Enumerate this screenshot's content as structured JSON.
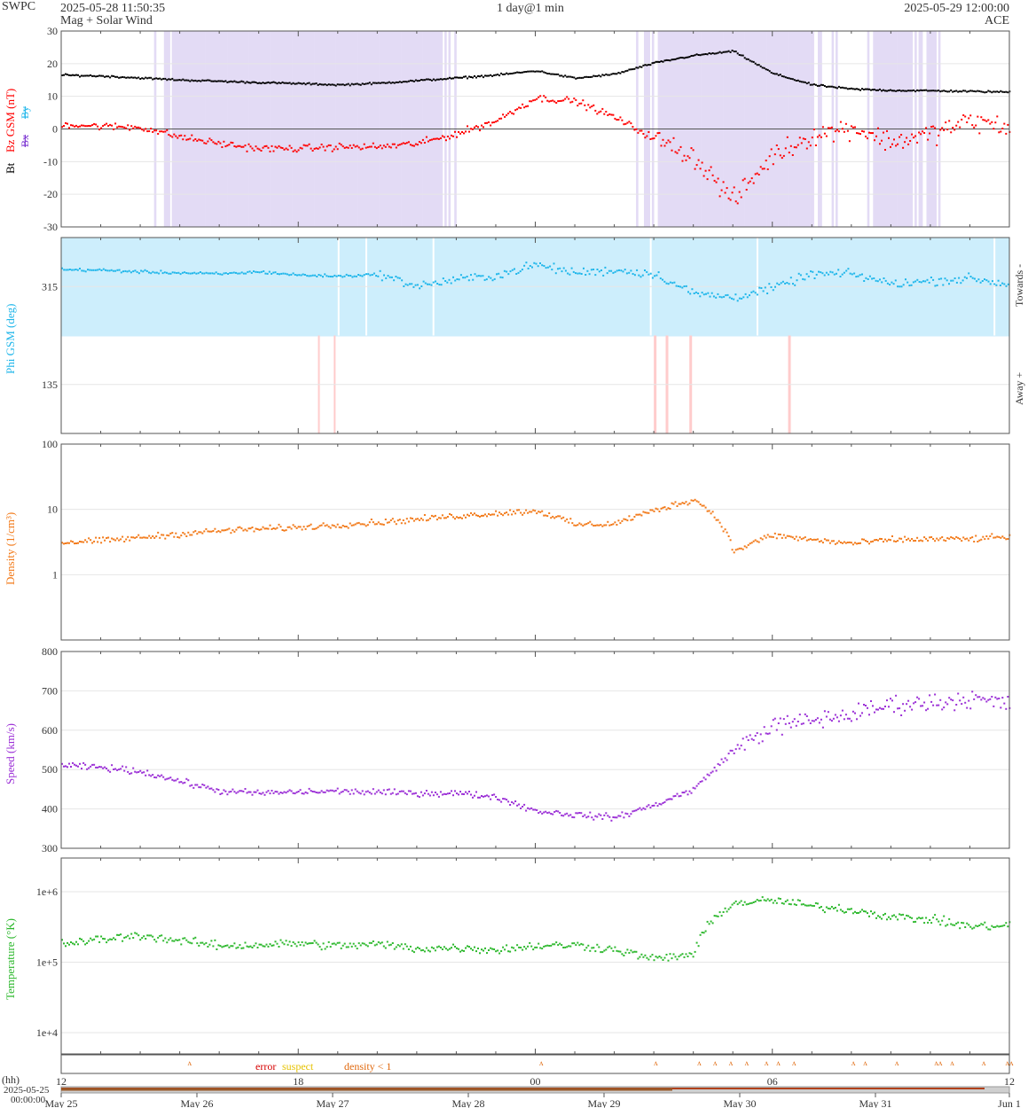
{
  "header": {
    "agency": "SWPC",
    "generated": "2025-05-28 11:50:35",
    "product": "Mag + Solar Wind",
    "span": "1 day@1 min",
    "end_time": "2025-05-29 12:00:00",
    "source": "ACE"
  },
  "legend": {
    "error": "error",
    "suspect": "suspect",
    "density_lt_1": "density < 1"
  },
  "colors": {
    "bt": "#000000",
    "bz": "#ff0000",
    "bz_neg_shade": "#e3dbf5",
    "phi": "#1fb6ea",
    "phi_toward_band": "#cdeefc",
    "phi_away_band": "#ffcccc",
    "density": "#f27a1a",
    "speed": "#9b2fd6",
    "temperature": "#2db82d",
    "error": "#d60000",
    "suspect": "#e6c200",
    "density_flag": "#e06a10",
    "grid": "#e6e6e6",
    "frame": "#555555"
  },
  "time_axis": {
    "hour_label": "(hh)",
    "hour_ticks": [
      "12",
      "18",
      "00",
      "06",
      "12"
    ],
    "start_date": "2025-05-25",
    "start_time": "00:00:00",
    "day_ticks": [
      "May 25",
      "May 26",
      "May 27",
      "May 28",
      "May 29",
      "May 30",
      "May 31",
      "Jun 1"
    ]
  },
  "chart_data": [
    {
      "type": "scatter",
      "panel": "mag",
      "ylabel_bt": "Bt",
      "ylabel_bz": "Bz GSM (nT)",
      "legend_bx": "Bx",
      "legend_by": "By",
      "ylim": [
        -30,
        30
      ],
      "yticks": [
        -30,
        -20,
        -10,
        0,
        10,
        20,
        30
      ],
      "x_unit": "hours since 2025-05-28 12:00",
      "series": [
        {
          "name": "Bt",
          "x": [
            0,
            1,
            2,
            3,
            4,
            5,
            6,
            7,
            8,
            9,
            10,
            11,
            12,
            13,
            14,
            15,
            16,
            17,
            18,
            19,
            20,
            21,
            22,
            23,
            24
          ],
          "y": [
            16.5,
            16.2,
            15.6,
            15.0,
            14.6,
            14.2,
            13.9,
            13.5,
            14.0,
            14.8,
            15.6,
            16.5,
            17.8,
            15.5,
            16.8,
            20.2,
            22.5,
            23.8,
            17.0,
            13.5,
            12.2,
            11.8,
            11.7,
            11.5,
            11.3
          ]
        },
        {
          "name": "Bz GSM",
          "x": [
            0,
            1,
            2,
            3,
            4,
            5,
            6,
            7,
            8,
            9,
            10,
            11,
            12,
            13,
            14,
            15,
            16,
            17,
            18,
            19,
            20,
            21,
            22,
            23,
            24
          ],
          "y": [
            1.5,
            0.8,
            0.5,
            -2.5,
            -4.5,
            -6.0,
            -6.0,
            -5.5,
            -5.5,
            -4.5,
            -1.5,
            2.5,
            9.5,
            8.5,
            3.5,
            -3.0,
            -8.5,
            -22.0,
            -8.0,
            -2.0,
            0.5,
            -4.0,
            -1.5,
            2.5,
            0.5
          ]
        }
      ]
    },
    {
      "type": "scatter",
      "panel": "phi",
      "ylabel": "Phi GSM (deg)",
      "right_label_top": "Towards -",
      "right_label_bottom": "Away +",
      "yticks": [
        315,
        135
      ],
      "x_unit": "hours since 2025-05-28 12:00",
      "series": [
        {
          "name": "Phi GSM",
          "x": [
            0,
            1,
            2,
            3,
            4,
            5,
            6,
            7,
            8,
            9,
            10,
            11,
            12,
            13,
            14,
            15,
            16,
            17,
            18,
            19,
            20,
            21,
            22,
            23,
            24
          ],
          "y": [
            346,
            345,
            342,
            340,
            338,
            342,
            336,
            334,
            337,
            316,
            328,
            335,
            355,
            340,
            345,
            338,
            302,
            295,
            312,
            338,
            338,
            320,
            325,
            330,
            318
          ]
        }
      ]
    },
    {
      "type": "scatter",
      "panel": "density",
      "ylabel": "Density (1/cm³)",
      "yscale": "log",
      "ylim": [
        0.1,
        100
      ],
      "ytick_labels": [
        "1",
        "10",
        "100"
      ],
      "x_unit": "hours since 2025-05-28 12:00",
      "series": [
        {
          "name": "Density",
          "x": [
            0,
            1,
            2,
            3,
            4,
            5,
            6,
            7,
            8,
            9,
            10,
            11,
            12,
            13,
            14,
            15,
            16,
            17,
            18,
            19,
            20,
            21,
            22,
            23,
            24
          ],
          "y": [
            3.1,
            3.3,
            3.7,
            4.2,
            4.7,
            5.0,
            5.3,
            5.8,
            6.3,
            7.0,
            7.9,
            8.7,
            9.5,
            5.8,
            6.0,
            9.5,
            14.0,
            2.2,
            4.0,
            3.4,
            3.0,
            3.4,
            3.5,
            3.5,
            3.8
          ]
        }
      ]
    },
    {
      "type": "scatter",
      "panel": "speed",
      "ylabel": "Speed (km/s)",
      "ylim": [
        300,
        800
      ],
      "yticks": [
        300,
        400,
        500,
        600,
        700,
        800
      ],
      "x_unit": "hours since 2025-05-28 12:00",
      "series": [
        {
          "name": "Speed",
          "x": [
            0,
            1,
            2,
            3,
            4,
            5,
            6,
            7,
            8,
            9,
            10,
            11,
            12,
            13,
            14,
            15,
            16,
            17,
            18,
            19,
            20,
            21,
            22,
            23,
            24
          ],
          "y": [
            510,
            505,
            495,
            470,
            445,
            440,
            443,
            445,
            442,
            440,
            440,
            430,
            395,
            385,
            378,
            410,
            450,
            550,
            610,
            625,
            640,
            665,
            670,
            680,
            665
          ]
        }
      ]
    },
    {
      "type": "scatter",
      "panel": "temperature",
      "ylabel": "Temperature (°K)",
      "yscale": "log",
      "ylim": [
        5000,
        3000000
      ],
      "ytick_labels": [
        "1e+4",
        "1e+5",
        "1e+6"
      ],
      "x_unit": "hours since 2025-05-28 12:00",
      "series": [
        {
          "name": "Temperature",
          "x": [
            0,
            1,
            2,
            3,
            4,
            5,
            6,
            7,
            8,
            9,
            10,
            11,
            12,
            13,
            14,
            15,
            16,
            17,
            18,
            19,
            20,
            21,
            22,
            23,
            24
          ],
          "y": [
            180000,
            210000,
            240000,
            200000,
            170000,
            175000,
            185000,
            170000,
            180000,
            155000,
            160000,
            150000,
            170000,
            175000,
            150000,
            110000,
            130000,
            680000,
            750000,
            620000,
            550000,
            440000,
            400000,
            320000,
            330000
          ]
        }
      ]
    }
  ]
}
